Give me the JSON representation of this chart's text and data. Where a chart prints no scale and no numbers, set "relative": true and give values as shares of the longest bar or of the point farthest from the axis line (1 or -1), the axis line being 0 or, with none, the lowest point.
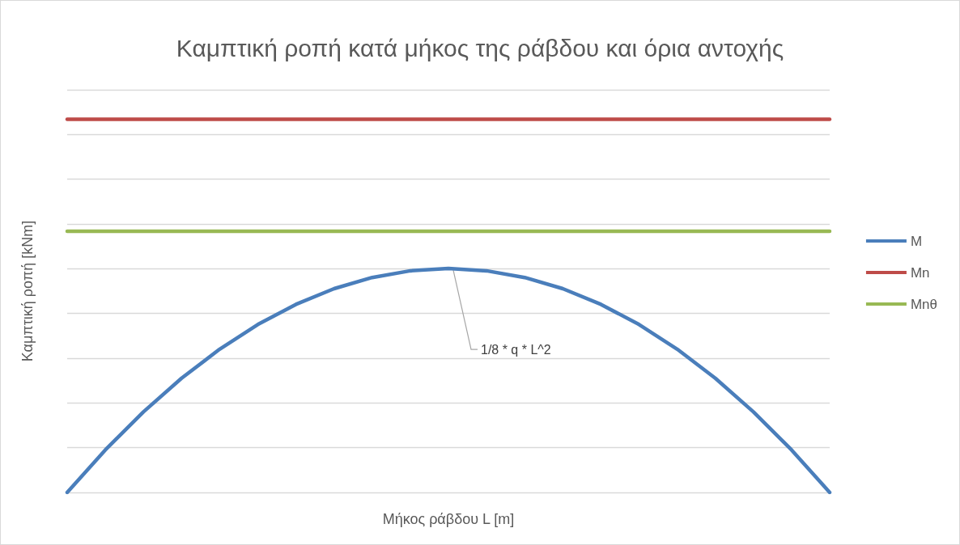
{
  "chart_data": {
    "type": "line",
    "relative": true,
    "title": "Καμπτική ροπή κατά μήκος της ράβδου και όρια αντοχής",
    "xlabel": "Μήκος ράβδου L [m]",
    "ylabel": "Καμπτική ροπή [kNm]",
    "categories": [
      null,
      null,
      null,
      null,
      null,
      null,
      null,
      null,
      null,
      null,
      null,
      null,
      null,
      null,
      null,
      null,
      null,
      null,
      null,
      null,
      null
    ],
    "series": [
      {
        "name": "M",
        "color": "#4a7ebb",
        "values": [
          0,
          0.114,
          0.216,
          0.306,
          0.384,
          0.45,
          0.504,
          0.546,
          0.576,
          0.594,
          0.6,
          0.594,
          0.576,
          0.546,
          0.504,
          0.45,
          0.384,
          0.306,
          0.216,
          0.114,
          0
        ]
      },
      {
        "name": "Mn",
        "color": "#be4b48",
        "values": [
          1,
          1,
          1,
          1,
          1,
          1,
          1,
          1,
          1,
          1,
          1,
          1,
          1,
          1,
          1,
          1,
          1,
          1,
          1,
          1,
          1
        ]
      },
      {
        "name": "Mnθ",
        "color": "#98b954",
        "values": [
          0.7,
          0.7,
          0.7,
          0.7,
          0.7,
          0.7,
          0.7,
          0.7,
          0.7,
          0.7,
          0.7,
          0.7,
          0.7,
          0.7,
          0.7,
          0.7,
          0.7,
          0.7,
          0.7,
          0.7,
          0.7
        ]
      }
    ],
    "annotations": [
      "1/8 * q * L^2"
    ],
    "grid": "y",
    "legend": "right",
    "marker": "none",
    "line_style": "solid"
  }
}
